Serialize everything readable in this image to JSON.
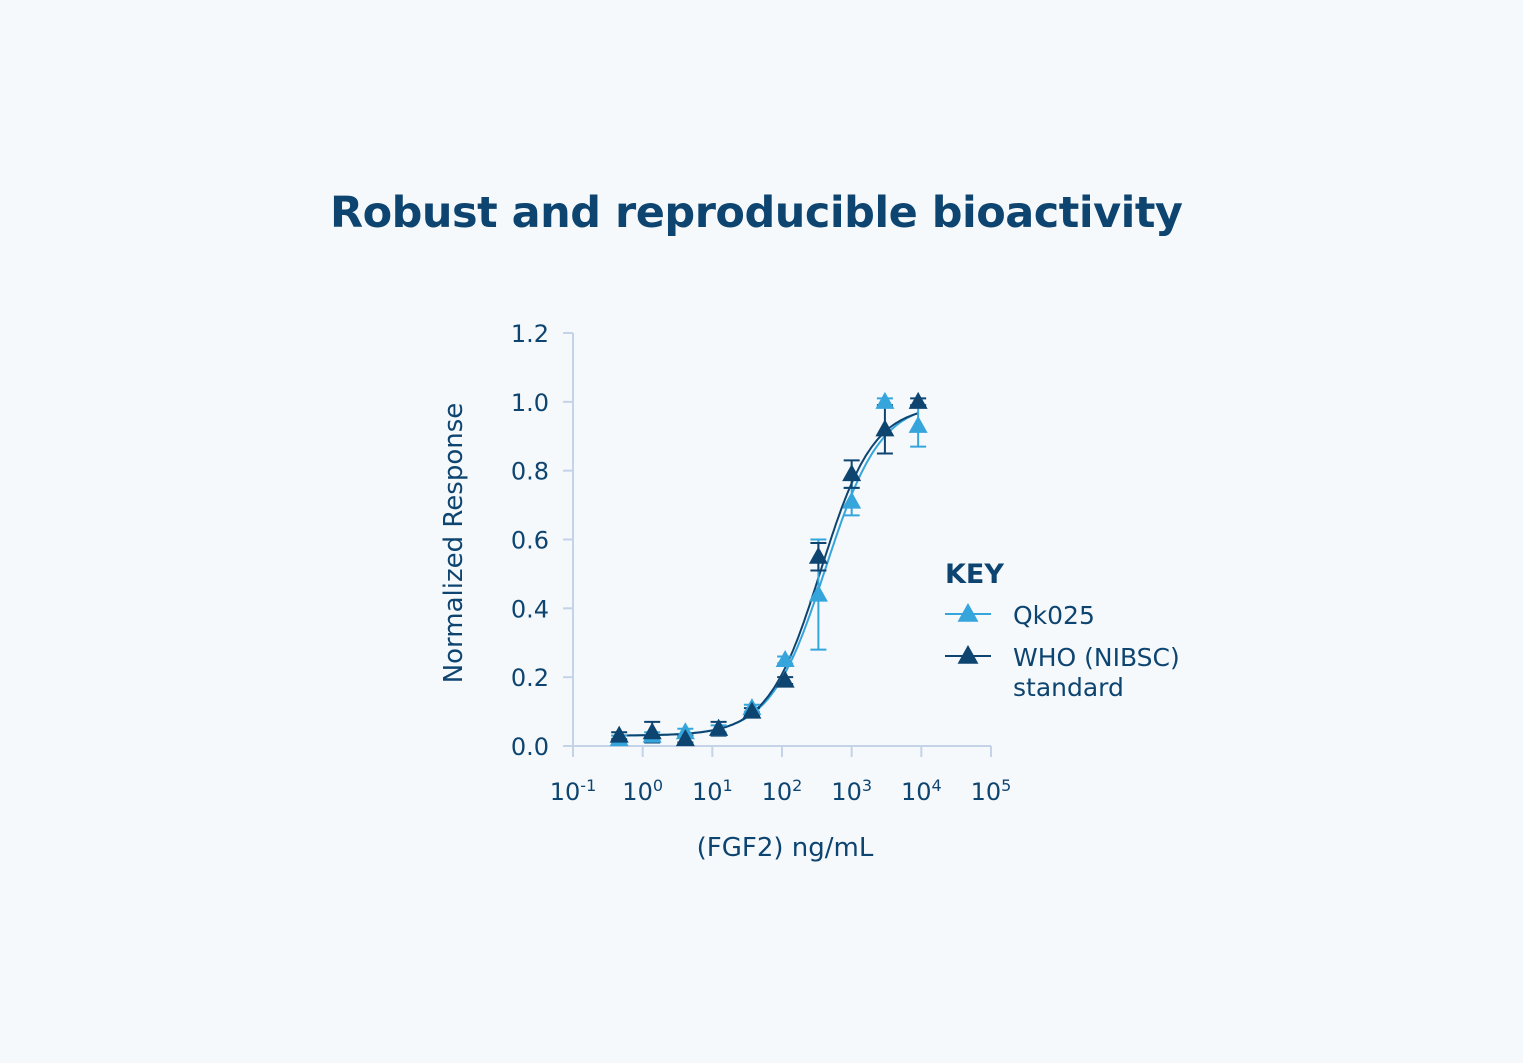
{
  "title": "Robust and reproducible bioactivity",
  "chart_data": {
    "type": "scatter",
    "xscale": "log",
    "xlabel": "(FGF2) ng/mL",
    "ylabel": "Normalized Response",
    "xlim": [
      0.1,
      100000
    ],
    "ylim": [
      0,
      1.2
    ],
    "x_ticks": [
      {
        "base": "10",
        "exp": "-1"
      },
      {
        "base": "10",
        "exp": "0"
      },
      {
        "base": "10",
        "exp": "1"
      },
      {
        "base": "10",
        "exp": "2"
      },
      {
        "base": "10",
        "exp": "3"
      },
      {
        "base": "10",
        "exp": "4"
      },
      {
        "base": "10",
        "exp": "5"
      }
    ],
    "y_ticks": [
      "0.0",
      "0.2",
      "0.4",
      "0.6",
      "0.8",
      "1.0",
      "1.2"
    ],
    "legend": {
      "title": "KEY",
      "position": "right",
      "entries": [
        {
          "lines": [
            "Qk025"
          ]
        },
        {
          "lines": [
            "WHO (NIBSC)",
            "standard"
          ]
        }
      ]
    },
    "series": [
      {
        "name": "Qk025",
        "color": "#35a5dc",
        "x": [
          0.46,
          1.37,
          4.1,
          12.3,
          37,
          111,
          333,
          1000,
          3000,
          9000
        ],
        "y": [
          0.02,
          0.03,
          0.04,
          0.05,
          0.11,
          0.25,
          0.44,
          0.71,
          1.0,
          0.93
        ],
        "err": [
          0.01,
          0.01,
          0.01,
          0.01,
          0.01,
          0.01,
          0.16,
          0.04,
          0.01,
          0.06
        ],
        "fit": {
          "bottom": 0.03,
          "top": 1.0,
          "ec50": 420,
          "hill": 1.1
        }
      },
      {
        "name": "WHO (NIBSC) standard",
        "color": "#0e4470",
        "x": [
          0.46,
          1.37,
          4.1,
          12.3,
          37,
          111,
          333,
          1000,
          3000,
          9000
        ],
        "y": [
          0.03,
          0.04,
          0.02,
          0.05,
          0.1,
          0.19,
          0.55,
          0.79,
          0.92,
          1.0
        ],
        "err": [
          0.01,
          0.03,
          0.01,
          0.02,
          0.01,
          0.01,
          0.04,
          0.04,
          0.07,
          0.01
        ],
        "fit": {
          "bottom": 0.03,
          "top": 0.99,
          "ec50": 360,
          "hill": 1.15
        }
      }
    ]
  }
}
